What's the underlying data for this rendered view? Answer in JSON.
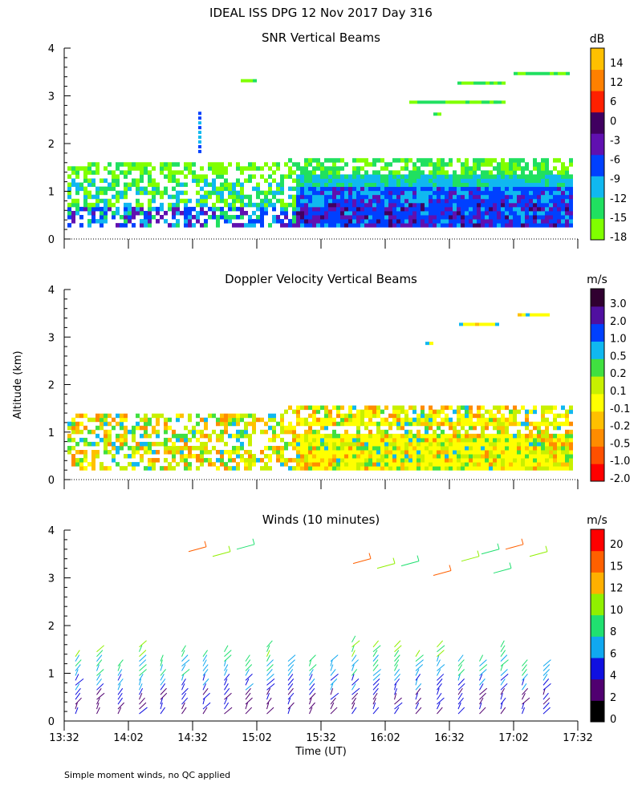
{
  "title": "IDEAL ISS DPG  12 Nov 2017 Day 316",
  "y_axis_label": "Altitude (km)",
  "x_axis_label": "Time (UT)",
  "footnote": "Simple moment winds, no QC applied",
  "x_tick_labels": [
    "13:32",
    "14:02",
    "14:32",
    "15:02",
    "15:32",
    "16:02",
    "16:32",
    "17:02",
    "17:32"
  ],
  "y_tick_labels": [
    "0",
    "1",
    "2",
    "3",
    "4"
  ],
  "colors": {
    "snr_scale": [
      "#80ff00",
      "#20e060",
      "#10b8f0",
      "#0040ff",
      "#6010b0",
      "#400060",
      "#ff2000",
      "#ff8000",
      "#ffc000"
    ],
    "velocity_scale": [
      "#ff0000",
      "#ff5000",
      "#ff8c00",
      "#ffc000",
      "#ffff00",
      "#c8f000",
      "#40e040",
      "#10b8f0",
      "#0040ff",
      "#5010a0",
      "#300030"
    ],
    "wind_scale": [
      "#000000",
      "#500070",
      "#1010e0",
      "#10a8f0",
      "#20e070",
      "#90f000",
      "#ffb000",
      "#ff6000",
      "#ff0000"
    ]
  },
  "chart_data": [
    {
      "type": "heatmap",
      "title": "SNR Vertical Beams",
      "colorbar_unit": "dB",
      "colorbar_labels": [
        "14",
        "12",
        "6",
        "0",
        "-3",
        "-6",
        "-9",
        "-12",
        "-15",
        "-18"
      ],
      "x_range": [
        "13:32",
        "17:32"
      ],
      "ylim": [
        0,
        4
      ],
      "ylabel": "Altitude (km)"
    },
    {
      "type": "heatmap",
      "title": "Doppler Velocity Vertical Beams",
      "colorbar_unit": "m/s",
      "colorbar_labels": [
        "3.0",
        "2.0",
        "1.0",
        "0.5",
        "0.2",
        "0.1",
        "-0.1",
        "-0.2",
        "-0.5",
        "-1.0",
        "-2.0"
      ],
      "x_range": [
        "13:32",
        "17:32"
      ],
      "ylim": [
        0,
        4
      ],
      "ylabel": "Altitude (km)"
    },
    {
      "type": "scatter",
      "title": "Winds (10 minutes)",
      "colorbar_unit": "m/s",
      "colorbar_labels": [
        "20",
        "15",
        "12",
        "10",
        "8",
        "6",
        "4",
        "2",
        "0"
      ],
      "x_range": [
        "13:32",
        "17:32"
      ],
      "ylim": [
        0,
        4
      ],
      "xlabel": "Time (UT)",
      "ylabel": "Altitude (km)"
    }
  ]
}
